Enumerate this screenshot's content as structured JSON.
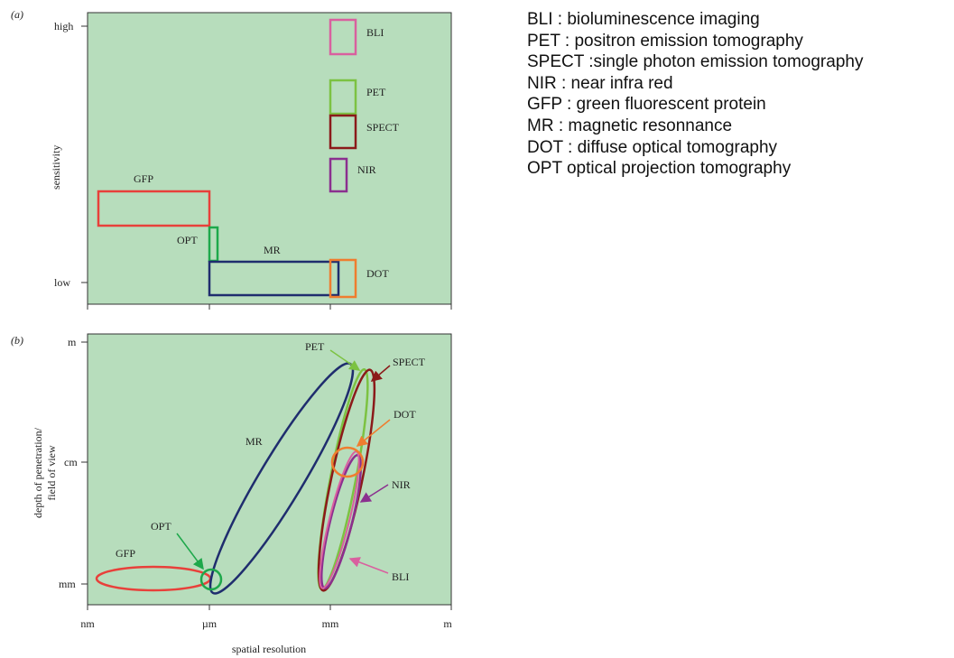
{
  "colors": {
    "background": "#b7ddbc",
    "BLI": "#d9609f",
    "PET": "#7cc242",
    "SPECT": "#8b1a1a",
    "NIR": "#8b2f8f",
    "GFP": "#e8403a",
    "OPT": "#1ea84b",
    "MR": "#1f2d6e",
    "DOT": "#ef7d2f"
  },
  "panel_a": {
    "label": "(a)",
    "ylabel": "sensitivity",
    "y_ticks": [
      "high",
      "low"
    ],
    "boxes": [
      {
        "id": "BLI",
        "label": "BLI"
      },
      {
        "id": "PET",
        "label": "PET"
      },
      {
        "id": "SPECT",
        "label": "SPECT"
      },
      {
        "id": "NIR",
        "label": "NIR"
      },
      {
        "id": "GFP",
        "label": "GFP"
      },
      {
        "id": "OPT",
        "label": "OPT"
      },
      {
        "id": "MR",
        "label": "MR"
      },
      {
        "id": "DOT",
        "label": "DOT"
      }
    ]
  },
  "panel_b": {
    "label": "(b)",
    "ylabel_line1": "depth of penetration/",
    "ylabel_line2": "field of view",
    "y_ticks": [
      "m",
      "cm",
      "mm"
    ],
    "x_ticks": [
      "nm",
      "µm",
      "mm",
      "m"
    ],
    "xlabel": "spatial resolution",
    "labels": {
      "PET": "PET",
      "SPECT": "SPECT",
      "DOT": "DOT",
      "MR": "MR",
      "NIR": "NIR",
      "OPT": "OPT",
      "GFP": "GFP",
      "BLI": "BLI"
    }
  },
  "legend": [
    "BLI : bioluminescence imaging",
    "PET : positron emission tomography",
    "SPECT :single photon emission tomography",
    "NIR : near infra red",
    "GFP : green fluorescent protein",
    "MR : magnetic resonnance",
    "DOT : diffuse optical tomography",
    "OPT optical projection tomography"
  ]
}
